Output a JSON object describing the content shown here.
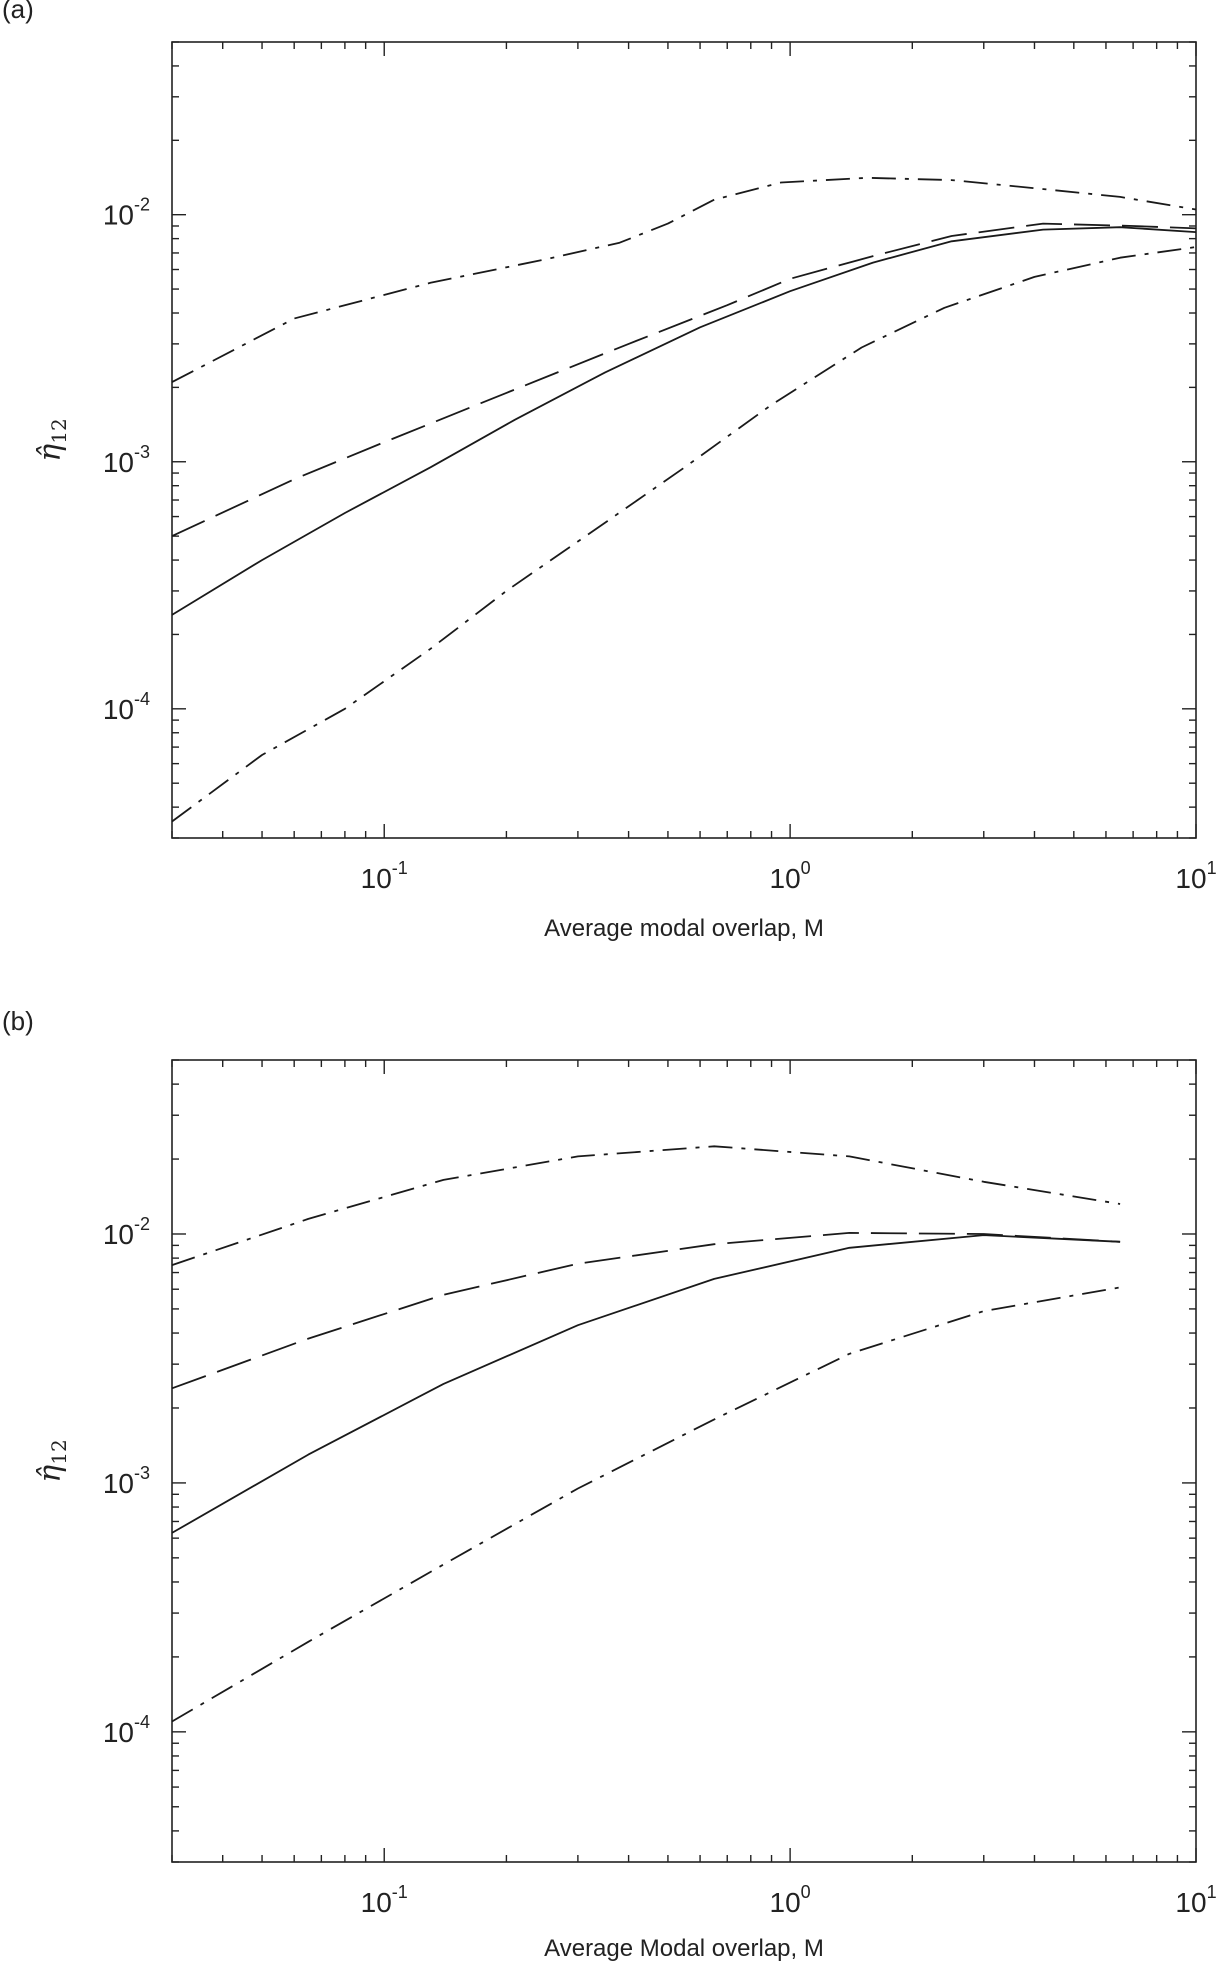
{
  "chart_data": [
    {
      "type": "line",
      "panel_label": "(a)",
      "xlabel": "Average modal overlap, M",
      "ylabel": "η̂",
      "ylabel_subscript": "12",
      "xscale": "log",
      "yscale": "log",
      "xlim": [
        0.03,
        10
      ],
      "ylim": [
        3e-05,
        0.05
      ],
      "x_ticks": [
        {
          "base": "10",
          "exp": "-1"
        },
        {
          "base": "10",
          "exp": "0"
        },
        {
          "base": "10",
          "exp": "1"
        }
      ],
      "y_ticks": [
        {
          "base": "10",
          "exp": "-4"
        },
        {
          "base": "10",
          "exp": "-3"
        },
        {
          "base": "10",
          "exp": "-2"
        }
      ],
      "series": [
        {
          "name": "upper dash-dot",
          "style": "dashdot",
          "x": [
            0.03,
            0.06,
            0.13,
            0.25,
            0.38,
            0.5,
            0.65,
            0.95,
            1.55,
            2.5,
            4.0,
            6.5,
            10
          ],
          "y": [
            0.0021,
            0.0038,
            0.0053,
            0.0066,
            0.0077,
            0.0092,
            0.0115,
            0.0135,
            0.0141,
            0.0138,
            0.0128,
            0.0118,
            0.0105
          ]
        },
        {
          "name": "long dash",
          "style": "longdash",
          "x": [
            0.03,
            0.06,
            0.1,
            0.2,
            0.4,
            0.7,
            1.0,
            1.6,
            2.5,
            4.2,
            7.0,
            10
          ],
          "y": [
            0.0005,
            0.00085,
            0.0012,
            0.0019,
            0.003,
            0.0043,
            0.0055,
            0.0068,
            0.0082,
            0.0092,
            0.009,
            0.0088
          ]
        },
        {
          "name": "solid",
          "style": "solid",
          "x": [
            0.03,
            0.05,
            0.08,
            0.13,
            0.21,
            0.35,
            0.6,
            1.0,
            1.6,
            2.5,
            4.2,
            6.5,
            10
          ],
          "y": [
            0.00024,
            0.0004,
            0.00062,
            0.00095,
            0.00148,
            0.0023,
            0.0035,
            0.0049,
            0.0064,
            0.0078,
            0.0087,
            0.0089,
            0.0085
          ]
        },
        {
          "name": "lower dash-dot",
          "style": "dashdot",
          "x": [
            0.03,
            0.05,
            0.08,
            0.13,
            0.2,
            0.33,
            0.55,
            0.9,
            1.5,
            2.4,
            4.0,
            6.5,
            10
          ],
          "y": [
            3.5e-05,
            6.5e-05,
            0.0001,
            0.000175,
            0.0003,
            0.00053,
            0.00095,
            0.0017,
            0.0029,
            0.0042,
            0.0056,
            0.0067,
            0.0074
          ]
        }
      ]
    },
    {
      "type": "line",
      "panel_label": "(b)",
      "xlabel": "Average Modal overlap, M",
      "ylabel": "η̂",
      "ylabel_subscript": "12",
      "xscale": "log",
      "yscale": "log",
      "xlim": [
        0.03,
        10
      ],
      "ylim": [
        3e-05,
        0.05
      ],
      "x_ticks": [
        {
          "base": "10",
          "exp": "-1"
        },
        {
          "base": "10",
          "exp": "0"
        },
        {
          "base": "10",
          "exp": "1"
        }
      ],
      "y_ticks": [
        {
          "base": "10",
          "exp": "-4"
        },
        {
          "base": "10",
          "exp": "-3"
        },
        {
          "base": "10",
          "exp": "-2"
        }
      ],
      "series": [
        {
          "name": "upper dash-dot",
          "style": "dashdot",
          "x": [
            0.03,
            0.065,
            0.14,
            0.3,
            0.65,
            1.4,
            3.0,
            6.5
          ],
          "y": [
            0.0075,
            0.0115,
            0.0165,
            0.0205,
            0.0225,
            0.0205,
            0.0162,
            0.0132
          ]
        },
        {
          "name": "long dash",
          "style": "longdash",
          "x": [
            0.03,
            0.065,
            0.14,
            0.3,
            0.65,
            1.4,
            3.0,
            6.5
          ],
          "y": [
            0.0024,
            0.0038,
            0.0057,
            0.0076,
            0.0091,
            0.0101,
            0.01,
            0.0093
          ]
        },
        {
          "name": "solid",
          "style": "solid",
          "x": [
            0.03,
            0.065,
            0.14,
            0.3,
            0.65,
            1.4,
            3.0,
            6.5
          ],
          "y": [
            0.00063,
            0.0013,
            0.0025,
            0.0043,
            0.0066,
            0.0088,
            0.0099,
            0.0093
          ]
        },
        {
          "name": "lower dash-dot",
          "style": "dashdot",
          "x": [
            0.03,
            0.065,
            0.14,
            0.3,
            0.65,
            1.4,
            3.0,
            6.5
          ],
          "y": [
            0.00011,
            0.00023,
            0.00047,
            0.00095,
            0.0018,
            0.0033,
            0.0049,
            0.0061
          ]
        }
      ]
    }
  ]
}
